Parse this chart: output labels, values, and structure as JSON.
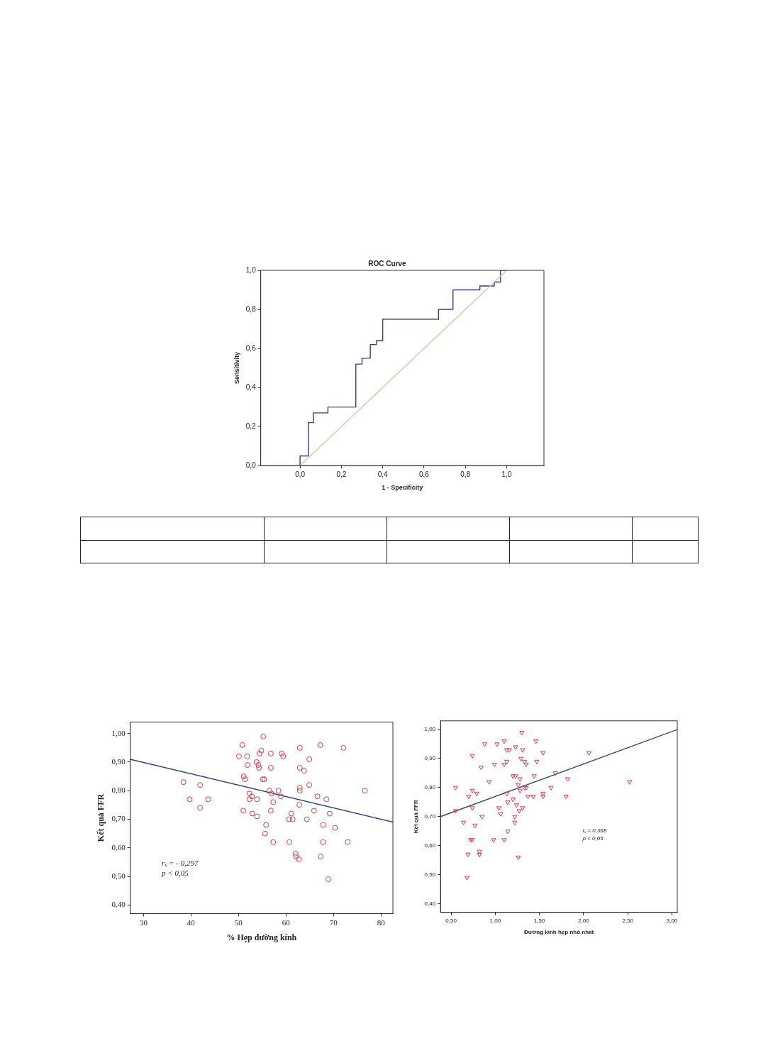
{
  "chart_data": [
    {
      "type": "line",
      "title": "ROC Curve",
      "xlabel": "1 - Specificity",
      "ylabel": "Sensitivity",
      "xlim": [
        -0.19,
        1.18
      ],
      "ylim": [
        0,
        1
      ],
      "xticks": [
        {
          "value": 0,
          "label": "0,0"
        },
        {
          "value": 0.2,
          "label": "0,2"
        },
        {
          "value": 0.4,
          "label": "0,4"
        },
        {
          "value": 0.6,
          "label": "0,6"
        },
        {
          "value": 0.8,
          "label": "0,8"
        },
        {
          "value": 1,
          "label": "1,0"
        }
      ],
      "yticks": [
        {
          "value": 0,
          "label": "0,0"
        },
        {
          "value": 0.2,
          "label": "0,2"
        },
        {
          "value": 0.4,
          "label": "0,4"
        },
        {
          "value": 0.6,
          "label": "0,6"
        },
        {
          "value": 0.8,
          "label": "0,8"
        },
        {
          "value": 1,
          "label": "1,0"
        }
      ],
      "grid": false,
      "series": [
        {
          "marker": "none",
          "color": "#b5d6a7",
          "x": [
            0,
            1
          ],
          "values": [
            0,
            1
          ]
        },
        {
          "marker": "none",
          "color": "#34407f",
          "x": [
            0,
            0,
            0.04,
            0.04,
            0.065,
            0.065,
            0.135,
            0.135,
            0.27,
            0.27,
            0.3,
            0.3,
            0.34,
            0.34,
            0.37,
            0.37,
            0.4,
            0.4,
            0.67,
            0.67,
            0.74,
            0.74,
            0.87,
            0.87,
            0.94,
            0.94,
            0.97,
            0.97,
            1
          ],
          "values": [
            0,
            0.05,
            0.05,
            0.22,
            0.22,
            0.27,
            0.27,
            0.3,
            0.3,
            0.52,
            0.52,
            0.55,
            0.55,
            0.62,
            0.62,
            0.64,
            0.64,
            0.75,
            0.75,
            0.8,
            0.8,
            0.9,
            0.9,
            0.92,
            0.92,
            0.94,
            0.94,
            1,
            1
          ]
        }
      ]
    },
    {
      "type": "scatter",
      "xlabel": "% Hẹp đường kính",
      "ylabel": "Kết quả FFR",
      "xlim": [
        27.2,
        82.5
      ],
      "ylim": [
        0.37,
        1.04
      ],
      "xticks": [
        30,
        40,
        50,
        60,
        70,
        80
      ],
      "yticks": [
        {
          "value": 0.4,
          "label": "0,40"
        },
        {
          "value": 0.5,
          "label": "0,50"
        },
        {
          "value": 0.6,
          "label": "0,60"
        },
        {
          "value": 0.7,
          "label": "0,70"
        },
        {
          "value": 0.8,
          "label": "0,80"
        },
        {
          "value": 0.9,
          "label": "0,90"
        },
        {
          "value": 1,
          "label": "1,00"
        }
      ],
      "grid": false,
      "annotations": [
        "rₛ = - 0,297",
        "p < 0,05"
      ],
      "series": [
        {
          "marker": "circle",
          "color": "#d9384a",
          "x": [
            38.4,
            41.9,
            39.7,
            43.6,
            41.9,
            55.2,
            50.8,
            50.1,
            51.8,
            54.8,
            54.4,
            56.8,
            59.1,
            59.4,
            62.9,
            67.2,
            72.1,
            64.9,
            51.9,
            53.8,
            54.2,
            54.3,
            56.8,
            62.9,
            63.8,
            51.1,
            51.4,
            55.1,
            55.4,
            64.9,
            62.9,
            62.9,
            58.4,
            56.5,
            52.3,
            52.8,
            56.9,
            58.9,
            52.3,
            53.9,
            57.3,
            66.6,
            68.5,
            62.8,
            76.6,
            51.0,
            56.8,
            52.9,
            53.9,
            65.9,
            61.1,
            60.6,
            61.4,
            64.4,
            69.2,
            55.8,
            67.8,
            70.3,
            55.6,
            57.3,
            60.7,
            67.8,
            73.0,
            62.0,
            62.1,
            62.7,
            67.3,
            68.9
          ],
          "values": [
            0.83,
            0.82,
            0.77,
            0.77,
            0.74,
            0.99,
            0.96,
            0.92,
            0.92,
            0.94,
            0.93,
            0.93,
            0.93,
            0.92,
            0.95,
            0.96,
            0.95,
            0.91,
            0.89,
            0.9,
            0.89,
            0.88,
            0.88,
            0.88,
            0.87,
            0.85,
            0.84,
            0.84,
            0.84,
            0.82,
            0.81,
            0.8,
            0.8,
            0.8,
            0.79,
            0.78,
            0.79,
            0.78,
            0.77,
            0.77,
            0.76,
            0.78,
            0.77,
            0.75,
            0.8,
            0.73,
            0.73,
            0.72,
            0.71,
            0.73,
            0.72,
            0.7,
            0.7,
            0.7,
            0.72,
            0.68,
            0.68,
            0.67,
            0.65,
            0.62,
            0.62,
            0.62,
            0.62,
            0.58,
            0.57,
            0.56,
            0.57,
            0.49
          ]
        },
        {
          "type": "line",
          "marker": "none",
          "color": "#34407f",
          "x": [
            27.2,
            82.5
          ],
          "values": [
            0.91,
            0.69
          ]
        }
      ]
    },
    {
      "type": "scatter",
      "xlabel": "Đường kính hẹp nhỏ nhất",
      "ylabel": "Kết quả FFR",
      "xlim": [
        0.38,
        3.06
      ],
      "ylim": [
        0.37,
        1.03
      ],
      "xticks": [
        {
          "value": 0.5,
          "label": "0,50"
        },
        {
          "value": 1,
          "label": "1,00"
        },
        {
          "value": 1.5,
          "label": "1,50"
        },
        {
          "value": 2,
          "label": "2,00"
        },
        {
          "value": 2.5,
          "label": "2,50"
        },
        {
          "value": 3,
          "label": "3,00"
        }
      ],
      "yticks": [
        {
          "value": 0.4,
          "label": "0,40"
        },
        {
          "value": 0.5,
          "label": "0,50"
        },
        {
          "value": 0.6,
          "label": "0,60"
        },
        {
          "value": 0.7,
          "label": "0,70"
        },
        {
          "value": 0.8,
          "label": "0,80"
        },
        {
          "value": 0.9,
          "label": "0,90"
        },
        {
          "value": 1,
          "label": "1,00"
        }
      ],
      "grid": false,
      "annotations": [
        "rₛ = 0,368",
        "p < 0,05"
      ],
      "series": [
        {
          "marker": "triangle",
          "color": "#d9384a",
          "x": [
            1.3,
            0.88,
            1.02,
            1.1,
            1.46,
            1.23,
            1.13,
            1.16,
            1.31,
            0.74,
            1.54,
            2.06,
            1.29,
            1.33,
            1.47,
            1.13,
            0.99,
            1.1,
            1.35,
            0.84,
            1.68,
            1.2,
            1.23,
            1.44,
            1.28,
            1.82,
            0.93,
            2.52,
            1.26,
            0.55,
            1.33,
            1.35,
            1.63,
            1.28,
            0.74,
            0.79,
            1.13,
            1.54,
            0.7,
            1.37,
            1.43,
            1.54,
            1.8,
            1.2,
            1.14,
            1.24,
            0.55,
            0.74,
            1.04,
            1.31,
            1.27,
            1.06,
            0.85,
            1.22,
            0.64,
            1.22,
            0.77,
            1.14,
            0.72,
            0.74,
            0.98,
            1.1,
            0.82,
            0.82,
            0.69,
            1.26,
            0.68
          ],
          "values": [
            0.99,
            0.95,
            0.95,
            0.96,
            0.96,
            0.94,
            0.93,
            0.93,
            0.93,
            0.91,
            0.92,
            0.92,
            0.9,
            0.89,
            0.89,
            0.89,
            0.88,
            0.88,
            0.88,
            0.87,
            0.85,
            0.84,
            0.84,
            0.84,
            0.83,
            0.83,
            0.82,
            0.82,
            0.81,
            0.8,
            0.8,
            0.8,
            0.8,
            0.79,
            0.79,
            0.78,
            0.78,
            0.78,
            0.77,
            0.77,
            0.77,
            0.77,
            0.77,
            0.76,
            0.75,
            0.74,
            0.72,
            0.73,
            0.73,
            0.73,
            0.72,
            0.71,
            0.7,
            0.7,
            0.68,
            0.68,
            0.67,
            0.65,
            0.62,
            0.62,
            0.62,
            0.62,
            0.58,
            0.57,
            0.57,
            0.56,
            0.49
          ]
        },
        {
          "type": "line",
          "marker": "none",
          "color": "#34407f",
          "x": [
            0.38,
            3.06
          ],
          "values": [
            0.7,
            1.0
          ]
        }
      ]
    }
  ]
}
